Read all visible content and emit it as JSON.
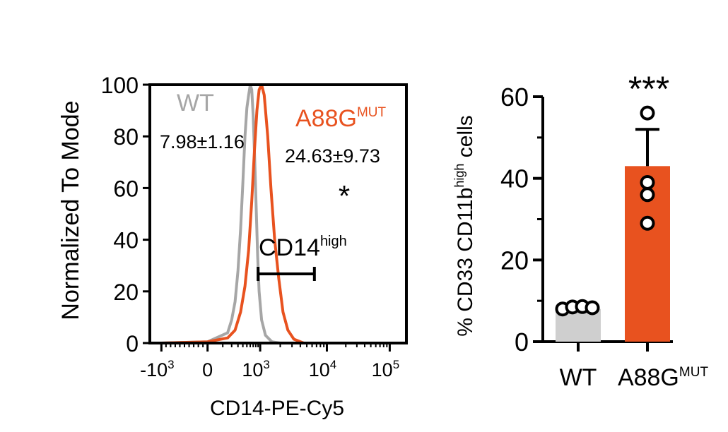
{
  "colors": {
    "wt": "#a6a6a6",
    "wt_bar": "#cfcfcf",
    "mut": "#e8521f",
    "axis": "#000000"
  },
  "chart_data": [
    {
      "type": "line",
      "subtype": "flow-cytometry histogram",
      "xlabel": "CD14-PE-Cy5",
      "ylabel": "Normalized To Mode",
      "x_scale": "biexponential",
      "ylim": [
        0,
        100
      ],
      "y_ticks": [
        "0",
        "20",
        "40",
        "60",
        "80",
        "100"
      ],
      "x_ticks": [
        {
          "base": "-10",
          "exp": "3"
        },
        {
          "base": "0",
          "exp": ""
        },
        {
          "base": "10",
          "exp": "3"
        },
        {
          "base": "10",
          "exp": "4"
        },
        {
          "base": "10",
          "exp": "5"
        }
      ],
      "series": [
        {
          "name": "WT",
          "color": "#a6a6a6",
          "annotation": "7.98±1.16",
          "points": [
            [
              -1000,
              0
            ],
            [
              0,
              0.5
            ],
            [
              150,
              4
            ],
            [
              200,
              9
            ],
            [
              250,
              16
            ],
            [
              300,
              28
            ],
            [
              350,
              44
            ],
            [
              400,
              62
            ],
            [
              450,
              80
            ],
            [
              500,
              91
            ],
            [
              550,
              96
            ],
            [
              600,
              100
            ],
            [
              650,
              98
            ],
            [
              700,
              88
            ],
            [
              760,
              70
            ],
            [
              820,
              52
            ],
            [
              880,
              34
            ],
            [
              950,
              20
            ],
            [
              1050,
              9
            ],
            [
              1200,
              3
            ],
            [
              1500,
              0.5
            ],
            [
              2000,
              0
            ]
          ]
        },
        {
          "name_base": "A88G",
          "name_sup": "MUT",
          "color": "#e8521f",
          "annotation": "24.63±9.73",
          "significance": "*",
          "points": [
            [
              -1000,
              0
            ],
            [
              0,
              0.5
            ],
            [
              150,
              2
            ],
            [
              250,
              5
            ],
            [
              350,
              12
            ],
            [
              450,
              22
            ],
            [
              550,
              36
            ],
            [
              650,
              55
            ],
            [
              750,
              75
            ],
            [
              850,
              90
            ],
            [
              950,
              98
            ],
            [
              1050,
              100
            ],
            [
              1150,
              96
            ],
            [
              1300,
              80
            ],
            [
              1450,
              60
            ],
            [
              1650,
              40
            ],
            [
              1900,
              25
            ],
            [
              2200,
              12
            ],
            [
              2600,
              5
            ],
            [
              3200,
              1.5
            ],
            [
              4500,
              0
            ]
          ]
        }
      ],
      "gate": {
        "label_base": "CD14",
        "label_sup": "high",
        "range": [
          900,
          6500
        ]
      }
    },
    {
      "type": "bar",
      "ylabel_parts": {
        "pre": "% CD33 CD11b",
        "sup": "high",
        "post": " cells"
      },
      "ylim": [
        0,
        60
      ],
      "y_ticks": [
        "0",
        "20",
        "40",
        "60"
      ],
      "categories": [
        {
          "base": "WT",
          "sup": ""
        },
        {
          "base": "A88G",
          "sup": "MUT"
        }
      ],
      "values": [
        8,
        43
      ],
      "sd": [
        0.6,
        9
      ],
      "points": [
        [
          8,
          8.5,
          8.6,
          8.3
        ],
        [
          29,
          36,
          39,
          56
        ]
      ],
      "significance": [
        "",
        "***"
      ]
    }
  ]
}
